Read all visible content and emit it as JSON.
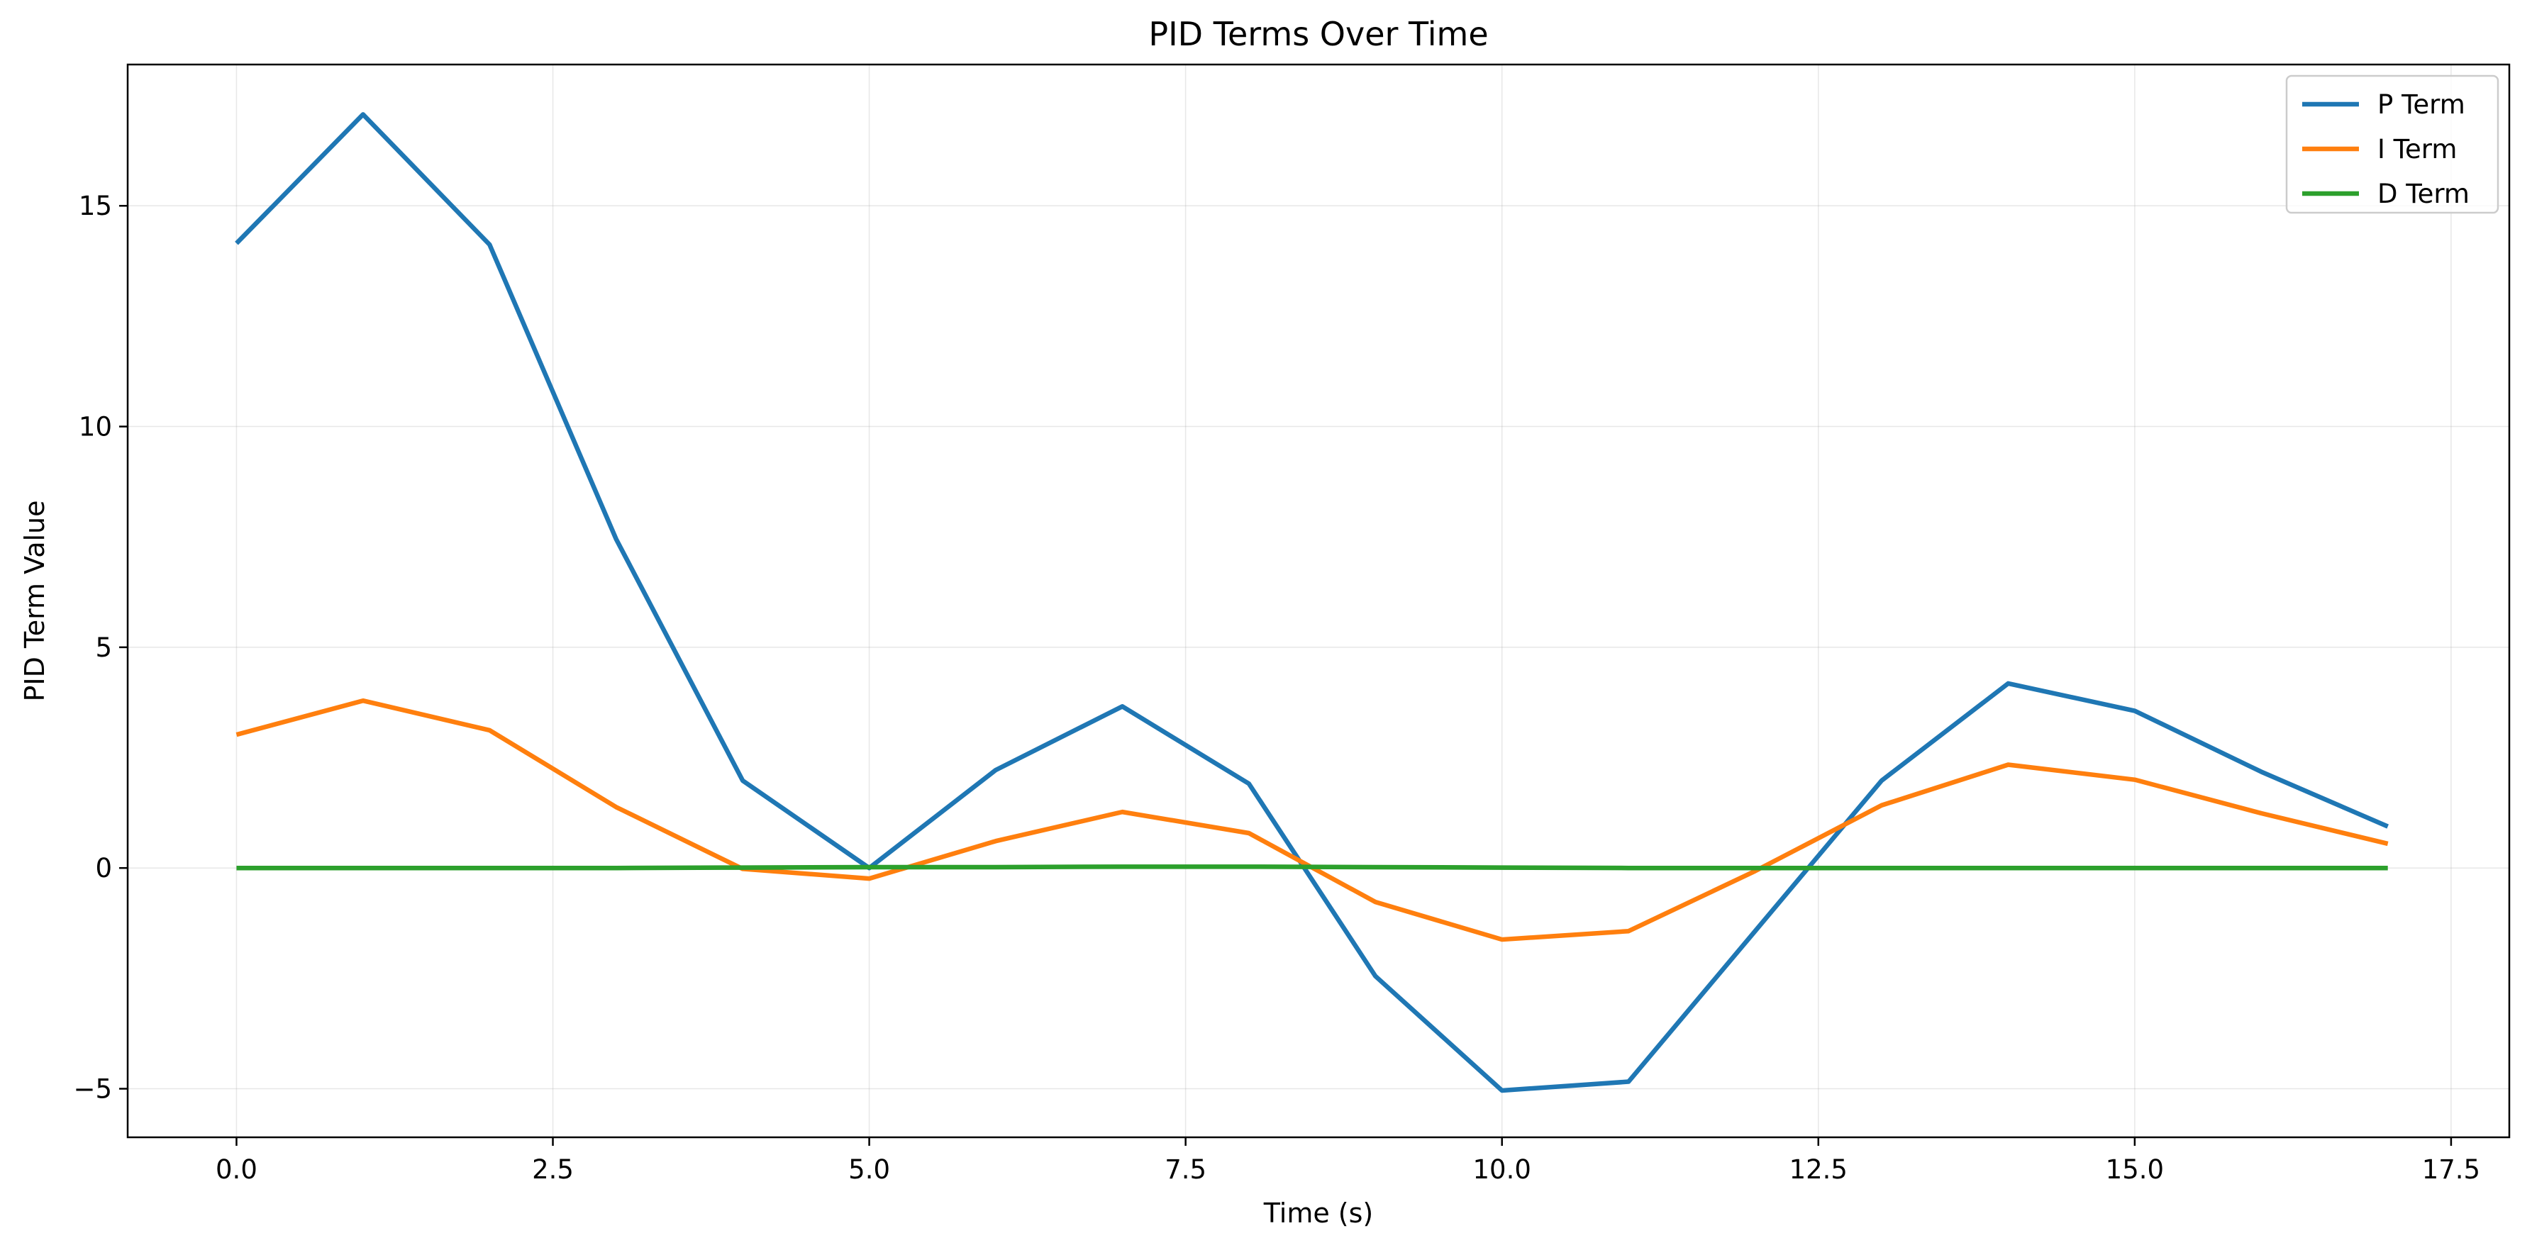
{
  "chart_data": {
    "type": "line",
    "title": "PID Terms Over Time",
    "xlabel": "Time (s)",
    "ylabel": "PID Term Value",
    "xlim": [
      -0.86,
      17.96
    ],
    "ylim": [
      -6.1,
      18.2
    ],
    "xticks": [
      0.0,
      2.5,
      5.0,
      7.5,
      10.0,
      12.5,
      15.0,
      17.5
    ],
    "xtick_labels": [
      "0.0",
      "2.5",
      "5.0",
      "7.5",
      "10.0",
      "12.5",
      "15.0",
      "17.5"
    ],
    "yticks": [
      -5,
      0,
      5,
      10,
      15
    ],
    "ytick_labels": [
      "−5",
      "0",
      "5",
      "10",
      "15"
    ],
    "grid": true,
    "legend_position": "top-right",
    "x": [
      0.0,
      1.0,
      2.0,
      3.0,
      4.0,
      5.0,
      6.0,
      7.0,
      8.0,
      9.0,
      10.0,
      11.0,
      12.0,
      13.0,
      14.0,
      15.0,
      16.0,
      17.0
    ],
    "series": [
      {
        "name": "P Term",
        "color": "#1f77b4",
        "values": [
          14.15,
          17.07,
          14.12,
          7.45,
          1.98,
          0.0,
          2.22,
          3.66,
          1.91,
          -2.45,
          -5.04,
          -4.84,
          -1.43,
          1.98,
          4.18,
          3.56,
          2.18,
          0.94
        ]
      },
      {
        "name": "I Term",
        "color": "#ff7f0e",
        "values": [
          3.02,
          3.79,
          3.12,
          1.38,
          -0.02,
          -0.24,
          0.61,
          1.27,
          0.79,
          -0.77,
          -1.62,
          -1.43,
          -0.07,
          1.42,
          2.34,
          2.0,
          1.24,
          0.55
        ]
      },
      {
        "name": "D Term",
        "color": "#2ca02c",
        "values": [
          0.0,
          0.0,
          0.0,
          0.0,
          0.01,
          0.02,
          0.02,
          0.03,
          0.03,
          0.02,
          0.01,
          0.0,
          0.0,
          0.0,
          0.0,
          0.0,
          0.0,
          0.0
        ]
      }
    ]
  }
}
